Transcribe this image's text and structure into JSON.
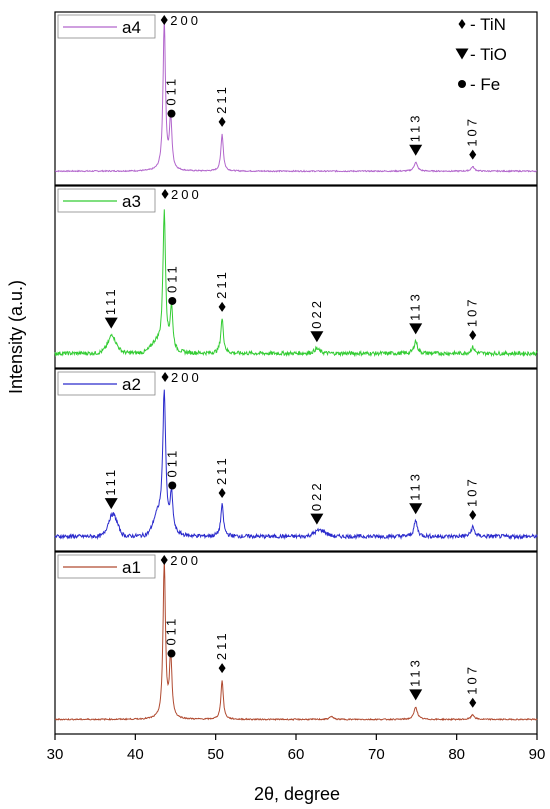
{
  "chart_data": {
    "type": "line",
    "xlabel": "2θ, degree",
    "ylabel": "Intensity (a.u.)",
    "xlim": [
      30,
      90
    ],
    "x_ticks": [
      30,
      40,
      50,
      60,
      70,
      80,
      90
    ],
    "grid": false,
    "legend": {
      "placement": "top-right",
      "entries": [
        {
          "marker": "diamond",
          "label": "- TiN"
        },
        {
          "marker": "triangle-down",
          "label": "- TiO"
        },
        {
          "marker": "circle",
          "label": "- Fe"
        }
      ]
    },
    "panels": [
      {
        "name": "a4",
        "color": "#b266cc",
        "baseline": 0.12,
        "peaks": [
          {
            "x": 43.6,
            "h": 1.0,
            "w": 0.18
          },
          {
            "x": 44.4,
            "h": 0.35,
            "w": 0.18
          },
          {
            "x": 50.8,
            "h": 0.25,
            "w": 0.18
          },
          {
            "x": 74.9,
            "h": 0.06,
            "w": 0.25
          },
          {
            "x": 82.0,
            "h": 0.03,
            "w": 0.25
          }
        ],
        "bumps": [],
        "annotations": [
          {
            "x": 43.6,
            "marker": "diamond",
            "text": "200",
            "orient": "horizontal"
          },
          {
            "x": 44.5,
            "marker": "circle",
            "text": "011",
            "orient": "vertical"
          },
          {
            "x": 50.8,
            "marker": "diamond",
            "text": "211",
            "orient": "vertical"
          },
          {
            "x": 74.9,
            "marker": "triangle-down",
            "text": "113",
            "orient": "vertical"
          },
          {
            "x": 82.0,
            "marker": "diamond",
            "text": "107",
            "orient": "vertical"
          }
        ]
      },
      {
        "name": "a3",
        "color": "#33cc33",
        "baseline": 0.12,
        "peaks": [
          {
            "x": 37.1,
            "h": 0.06,
            "w": 0.4
          },
          {
            "x": 43.6,
            "h": 0.88,
            "w": 0.2
          },
          {
            "x": 44.5,
            "h": 0.28,
            "w": 0.2
          },
          {
            "x": 50.8,
            "h": 0.22,
            "w": 0.2
          },
          {
            "x": 62.6,
            "h": 0.03,
            "w": 0.4
          },
          {
            "x": 74.9,
            "h": 0.08,
            "w": 0.25
          },
          {
            "x": 82.0,
            "h": 0.04,
            "w": 0.25
          }
        ],
        "bumps": [
          {
            "x": 37.1,
            "h": 0.06,
            "w": 0.9
          },
          {
            "x": 42.6,
            "h": 0.06,
            "w": 0.9
          }
        ],
        "annotations": [
          {
            "x": 37.0,
            "marker": "triangle-down",
            "text": "111",
            "orient": "vertical"
          },
          {
            "x": 43.7,
            "marker": "diamond",
            "text": "200",
            "orient": "horizontal"
          },
          {
            "x": 44.6,
            "marker": "circle",
            "text": "011",
            "orient": "vertical"
          },
          {
            "x": 50.8,
            "marker": "diamond",
            "text": "211",
            "orient": "vertical"
          },
          {
            "x": 62.6,
            "marker": "triangle-down",
            "text": "022",
            "orient": "vertical"
          },
          {
            "x": 74.9,
            "marker": "triangle-down",
            "text": "113",
            "orient": "vertical"
          },
          {
            "x": 82.0,
            "marker": "diamond",
            "text": "107",
            "orient": "vertical"
          }
        ]
      },
      {
        "name": "a2",
        "color": "#2a2acc",
        "baseline": 0.12,
        "peaks": [
          {
            "x": 43.6,
            "h": 0.88,
            "w": 0.22
          },
          {
            "x": 44.5,
            "h": 0.25,
            "w": 0.22
          },
          {
            "x": 50.8,
            "h": 0.2,
            "w": 0.2
          },
          {
            "x": 74.9,
            "h": 0.1,
            "w": 0.25
          },
          {
            "x": 82.0,
            "h": 0.06,
            "w": 0.25
          }
        ],
        "bumps": [
          {
            "x": 37.2,
            "h": 0.14,
            "w": 0.8
          },
          {
            "x": 42.8,
            "h": 0.12,
            "w": 0.8
          },
          {
            "x": 63.0,
            "h": 0.04,
            "w": 1.0
          }
        ],
        "annotations": [
          {
            "x": 37.0,
            "marker": "triangle-down",
            "text": "111",
            "orient": "vertical"
          },
          {
            "x": 43.7,
            "marker": "diamond",
            "text": "200",
            "orient": "horizontal"
          },
          {
            "x": 44.6,
            "marker": "circle",
            "text": "011",
            "orient": "vertical"
          },
          {
            "x": 50.8,
            "marker": "diamond",
            "text": "211",
            "orient": "vertical"
          },
          {
            "x": 62.6,
            "marker": "triangle-down",
            "text": "022",
            "orient": "vertical"
          },
          {
            "x": 74.9,
            "marker": "triangle-down",
            "text": "113",
            "orient": "vertical"
          },
          {
            "x": 82.0,
            "marker": "diamond",
            "text": "107",
            "orient": "vertical"
          }
        ]
      },
      {
        "name": "a1",
        "color": "#b04a30",
        "baseline": 0.1,
        "peaks": [
          {
            "x": 43.6,
            "h": 1.0,
            "w": 0.18
          },
          {
            "x": 44.4,
            "h": 0.4,
            "w": 0.18
          },
          {
            "x": 50.8,
            "h": 0.25,
            "w": 0.18
          },
          {
            "x": 64.4,
            "h": 0.02,
            "w": 0.25
          },
          {
            "x": 74.9,
            "h": 0.08,
            "w": 0.25
          },
          {
            "x": 82.0,
            "h": 0.03,
            "w": 0.25
          }
        ],
        "bumps": [],
        "annotations": [
          {
            "x": 43.6,
            "marker": "diamond",
            "text": "200",
            "orient": "horizontal"
          },
          {
            "x": 44.5,
            "marker": "circle",
            "text": "011",
            "orient": "vertical"
          },
          {
            "x": 50.8,
            "marker": "diamond",
            "text": "211",
            "orient": "vertical"
          },
          {
            "x": 74.9,
            "marker": "triangle-down",
            "text": "113",
            "orient": "vertical"
          },
          {
            "x": 82.0,
            "marker": "diamond",
            "text": "107",
            "orient": "vertical"
          }
        ]
      }
    ]
  }
}
